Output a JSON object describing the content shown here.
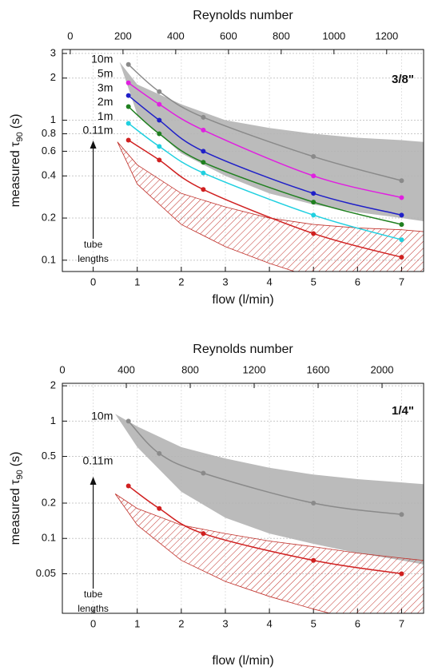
{
  "chart_data": [
    {
      "type": "scatter",
      "panel_label": "3/8\"",
      "x2label": "Reynolds number",
      "xlabel": "flow (l/min)",
      "ylabel": [
        "measured τ",
        "90",
        "(s)"
      ],
      "annotation": [
        "tube",
        "lengths"
      ],
      "xlim": [
        -0.7,
        7.5
      ],
      "xticks": [
        0,
        1,
        2,
        3,
        4,
        5,
        6,
        7
      ],
      "x2lim": [
        -30,
        1340
      ],
      "x2ticks": [
        0,
        200,
        400,
        600,
        800,
        1000,
        1200
      ],
      "ylim": [
        0.083,
        3.2
      ],
      "ylog": true,
      "yticks": [
        0.1,
        0.2,
        0.4,
        0.6,
        0.8,
        1,
        2,
        3
      ],
      "grid": true,
      "x": [
        0.8,
        1.5,
        2.5,
        5,
        7
      ],
      "series": [
        {
          "name": "10m",
          "color": "#8a8a8a",
          "values": [
            2.5,
            1.6,
            1.05,
            0.55,
            0.37
          ]
        },
        {
          "name": "5m",
          "color": "#e020e0",
          "values": [
            1.85,
            1.3,
            0.85,
            0.4,
            0.28
          ]
        },
        {
          "name": "3m",
          "color": "#2020c8",
          "values": [
            1.5,
            1.0,
            0.6,
            0.3,
            0.21
          ]
        },
        {
          "name": "2m",
          "color": "#208020",
          "values": [
            1.25,
            0.8,
            0.5,
            0.26,
            0.18
          ]
        },
        {
          "name": "1m",
          "color": "#20d0e0",
          "values": [
            0.95,
            0.65,
            0.42,
            0.21,
            0.14
          ]
        },
        {
          "name": "0.11m",
          "color": "#d02020",
          "values": [
            0.72,
            0.52,
            0.32,
            0.155,
            0.105
          ]
        }
      ],
      "bands": [
        {
          "style": "solid",
          "color": "#b4b4b4",
          "x": [
            0.6,
            1,
            2,
            3,
            4,
            5,
            6,
            7,
            7.5
          ],
          "upper": [
            2.6,
            1.8,
            1.3,
            1.0,
            0.88,
            0.8,
            0.75,
            0.72,
            0.7
          ],
          "lower": [
            2.6,
            1.1,
            0.58,
            0.4,
            0.3,
            0.25,
            0.22,
            0.2,
            0.19
          ]
        },
        {
          "style": "hatched",
          "color": "#c0302a",
          "x": [
            0.55,
            1,
            2,
            3,
            4,
            5,
            6,
            7,
            7.5
          ],
          "upper": [
            0.7,
            0.48,
            0.3,
            0.24,
            0.2,
            0.18,
            0.17,
            0.165,
            0.16
          ],
          "lower": [
            0.7,
            0.35,
            0.18,
            0.125,
            0.095,
            0.075,
            0.062,
            0.052,
            0.048
          ]
        }
      ]
    },
    {
      "type": "scatter",
      "panel_label": "1/4\"",
      "x2label": "Reynolds number",
      "xlabel": "flow (l/min)",
      "ylabel": [
        "measured τ",
        "90",
        "(s)"
      ],
      "annotation": [
        "tube",
        "lengths"
      ],
      "xlim": [
        -0.7,
        7.5
      ],
      "xticks": [
        0,
        1,
        2,
        3,
        4,
        5,
        6,
        7
      ],
      "x2lim": [
        0,
        2260
      ],
      "x2ticks": [
        0,
        400,
        800,
        1200,
        1600,
        2000
      ],
      "ylim": [
        0.023,
        2.1
      ],
      "ylog": true,
      "yticks": [
        0.05,
        0.1,
        0.2,
        0.5,
        1,
        2
      ],
      "grid": true,
      "x": [
        0.8,
        1.5,
        2.5,
        5,
        7
      ],
      "series": [
        {
          "name": "10m",
          "color": "#8a8a8a",
          "values": [
            1.0,
            0.53,
            0.36,
            0.2,
            0.16
          ]
        },
        {
          "name": "0.11m",
          "color": "#d02020",
          "values": [
            0.28,
            0.18,
            0.11,
            0.065,
            0.05
          ]
        }
      ],
      "bands": [
        {
          "style": "solid",
          "color": "#b4b4b4",
          "x": [
            0.5,
            1,
            2,
            3,
            4,
            5,
            6,
            7,
            7.5
          ],
          "upper": [
            1.15,
            0.9,
            0.6,
            0.48,
            0.4,
            0.35,
            0.32,
            0.3,
            0.29
          ],
          "lower": [
            1.15,
            0.6,
            0.25,
            0.15,
            0.11,
            0.09,
            0.075,
            0.065,
            0.06
          ]
        },
        {
          "style": "hatched",
          "color": "#c0302a",
          "x": [
            0.5,
            1,
            2,
            3,
            4,
            5,
            6,
            7,
            7.5
          ],
          "upper": [
            0.24,
            0.18,
            0.13,
            0.11,
            0.095,
            0.085,
            0.075,
            0.068,
            0.065
          ],
          "lower": [
            0.24,
            0.13,
            0.065,
            0.043,
            0.032,
            0.025,
            0.02,
            0.017,
            0.016
          ]
        }
      ]
    }
  ]
}
